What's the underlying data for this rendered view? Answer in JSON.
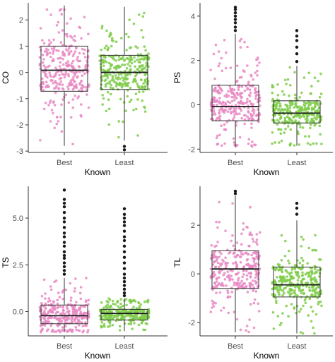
{
  "colors": {
    "best": "#e78ac3",
    "least": "#7fcc4a",
    "box_line": "#333333",
    "outlier": "#1a1a1a",
    "axis": "#333333"
  },
  "chart_data": [
    {
      "type": "box",
      "ylabel": "CO",
      "xlabel": "Known",
      "categories": [
        "Best",
        "Least"
      ],
      "ylim": [
        -3.05,
        2.65
      ],
      "yticks": [
        -3,
        -2,
        -1,
        0,
        1,
        2
      ],
      "ytick_labels": [
        "-3",
        "-2",
        "-1",
        "0",
        "1",
        "2"
      ],
      "jitter": {
        "count": 300,
        "seed": 11
      },
      "series": [
        {
          "name": "Best",
          "q1": -0.72,
          "median": 0.08,
          "q3": 1.0,
          "whisker_low": -2.8,
          "whisker_high": 2.55,
          "outliers": []
        },
        {
          "name": "Least",
          "q1": -0.65,
          "median": 0.0,
          "q3": 0.65,
          "whisker_low": -2.6,
          "whisker_high": 2.5,
          "outliers": [
            -2.82,
            -2.95
          ]
        }
      ]
    },
    {
      "type": "box",
      "ylabel": "PS",
      "xlabel": "Known",
      "categories": [
        "Best",
        "Least"
      ],
      "ylim": [
        -2.15,
        4.6
      ],
      "yticks": [
        -2,
        0,
        2,
        4
      ],
      "ytick_labels": [
        "-2",
        "0",
        "2",
        "4"
      ],
      "jitter": {
        "count": 300,
        "seed": 23
      },
      "series": [
        {
          "name": "Best",
          "q1": -0.72,
          "median": -0.08,
          "q3": 0.88,
          "whisker_low": -1.9,
          "whisker_high": 3.2,
          "outliers": [
            3.35,
            3.5,
            3.7,
            3.85,
            4.0,
            4.15,
            4.3,
            4.4
          ]
        },
        {
          "name": "Least",
          "q1": -0.82,
          "median": -0.38,
          "q3": 0.18,
          "whisker_low": -1.85,
          "whisker_high": 1.75,
          "outliers": [
            1.95,
            2.3,
            2.6,
            2.9,
            3.1,
            3.35
          ]
        }
      ]
    },
    {
      "type": "box",
      "ylabel": "TS",
      "xlabel": "Known",
      "categories": [
        "Best",
        "Least"
      ],
      "ylim": [
        -1.3,
        6.7
      ],
      "yticks": [
        0.0,
        2.5,
        5.0
      ],
      "ytick_labels": [
        "0.0",
        "2.5",
        "5.0"
      ],
      "jitter": {
        "count": 300,
        "seed": 37
      },
      "series": [
        {
          "name": "Best",
          "q1": -0.65,
          "median": -0.22,
          "q3": 0.35,
          "whisker_low": -1.1,
          "whisker_high": 1.8,
          "outliers": [
            2.0,
            2.2,
            2.4,
            2.6,
            2.85,
            3.0,
            3.2,
            3.5,
            3.7,
            4.0,
            4.2,
            4.5,
            4.8,
            5.0,
            5.3,
            5.6,
            5.8,
            6.0,
            6.5
          ]
        },
        {
          "name": "Least",
          "q1": -0.45,
          "median": -0.1,
          "q3": 0.12,
          "whisker_low": -1.05,
          "whisker_high": 0.7,
          "outliers": [
            0.85,
            1.0,
            1.2,
            1.4,
            1.6,
            1.8,
            2.0,
            2.3,
            2.6,
            2.9,
            3.2,
            3.5,
            3.8,
            4.0,
            4.3,
            4.6,
            4.8,
            5.0,
            5.2,
            5.5
          ]
        }
      ]
    },
    {
      "type": "box",
      "ylabel": "TL",
      "xlabel": "Known",
      "categories": [
        "Best",
        "Least"
      ],
      "ylim": [
        -2.55,
        3.6
      ],
      "yticks": [
        -2,
        0,
        2
      ],
      "ytick_labels": [
        "-2",
        "0",
        "2"
      ],
      "jitter": {
        "count": 300,
        "seed": 53
      },
      "series": [
        {
          "name": "Best",
          "q1": -0.6,
          "median": 0.2,
          "q3": 0.95,
          "whisker_low": -2.4,
          "whisker_high": 3.2,
          "outliers": [
            3.3,
            3.4
          ]
        },
        {
          "name": "Least",
          "q1": -0.95,
          "median": -0.45,
          "q3": 0.28,
          "whisker_low": -2.45,
          "whisker_high": 2.2,
          "outliers": [
            2.45,
            2.7,
            2.9
          ]
        }
      ]
    }
  ]
}
